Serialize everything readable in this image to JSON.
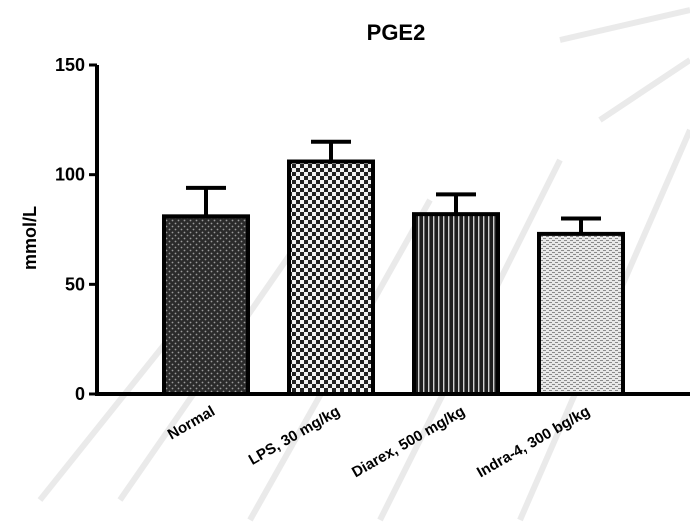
{
  "chart_data": {
    "type": "bar",
    "title": "PGE2",
    "ylabel": "mmol/L",
    "xlabel": "",
    "categories": [
      "Normal",
      "LPS, 30 mg/kg",
      "Diarex, 500 mg/kg",
      "Indra-4, 300 bg/kg"
    ],
    "values": [
      81,
      106,
      82,
      73
    ],
    "errors": [
      13,
      9,
      9,
      7
    ],
    "ylim": [
      0,
      150
    ],
    "yticks": [
      0,
      50,
      100,
      150
    ],
    "patterns": [
      "dots-dark",
      "checker",
      "vertical-stripes",
      "light-texture"
    ],
    "grid": false,
    "legend": "none"
  }
}
